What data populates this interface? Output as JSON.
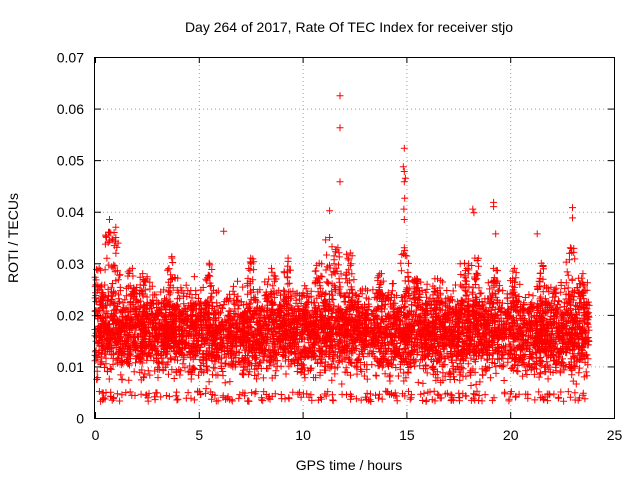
{
  "chart_data": {
    "type": "scatter",
    "title": "Day 264 of 2017, Rate Of TEC Index for receiver stjo",
    "xlabel": "GPS time / hours",
    "ylabel": "ROTI / TECUs",
    "xlim": [
      0,
      25
    ],
    "ylim": [
      0,
      0.07
    ],
    "x_ticks": [
      0,
      5,
      10,
      15,
      20,
      25
    ],
    "x_tick_labels": [
      "0",
      "5",
      "10",
      "15",
      "20",
      "25"
    ],
    "y_ticks": [
      0,
      0.01,
      0.02,
      0.03,
      0.04,
      0.05,
      0.06,
      0.07
    ],
    "y_tick_labels": [
      "0",
      "0.01",
      "0.02",
      "0.03",
      "0.04",
      "0.05",
      "0.06",
      "0.07"
    ],
    "grid": true,
    "marker": "+",
    "color": "#ff0000",
    "x_range_of_data": [
      0.0,
      23.8
    ],
    "bulk_band": [
      0.004,
      0.026
    ],
    "outliers": [
      {
        "x": 11.8,
        "y": 0.0625
      },
      {
        "x": 11.8,
        "y": 0.0563
      },
      {
        "x": 11.8,
        "y": 0.0458
      },
      {
        "x": 11.3,
        "y": 0.0402
      },
      {
        "x": 14.9,
        "y": 0.0523
      },
      {
        "x": 14.85,
        "y": 0.0487
      },
      {
        "x": 14.9,
        "y": 0.0478
      },
      {
        "x": 14.95,
        "y": 0.0465
      },
      {
        "x": 14.9,
        "y": 0.0458
      },
      {
        "x": 14.92,
        "y": 0.0426
      },
      {
        "x": 14.88,
        "y": 0.0405
      },
      {
        "x": 14.9,
        "y": 0.0385
      },
      {
        "x": 19.2,
        "y": 0.0418
      },
      {
        "x": 19.2,
        "y": 0.041
      },
      {
        "x": 18.2,
        "y": 0.0405
      },
      {
        "x": 18.25,
        "y": 0.0398
      },
      {
        "x": 23.0,
        "y": 0.0408
      },
      {
        "x": 23.0,
        "y": 0.0388
      },
      {
        "x": 0.7,
        "y": 0.0385
      },
      {
        "x": 1.0,
        "y": 0.037
      },
      {
        "x": 6.2,
        "y": 0.0362
      },
      {
        "x": 21.3,
        "y": 0.0357
      },
      {
        "x": 19.3,
        "y": 0.0357
      },
      {
        "x": 3.7,
        "y": 0.0313
      },
      {
        "x": 0.65,
        "y": 0.036
      }
    ],
    "peaks": [
      {
        "x": 0.2,
        "y": 0.029
      },
      {
        "x": 0.7,
        "y": 0.036
      },
      {
        "x": 1.0,
        "y": 0.035
      },
      {
        "x": 1.8,
        "y": 0.029
      },
      {
        "x": 2.3,
        "y": 0.028
      },
      {
        "x": 3.7,
        "y": 0.031
      },
      {
        "x": 5.5,
        "y": 0.03
      },
      {
        "x": 7.5,
        "y": 0.031
      },
      {
        "x": 8.5,
        "y": 0.029
      },
      {
        "x": 9.3,
        "y": 0.031
      },
      {
        "x": 10.8,
        "y": 0.03
      },
      {
        "x": 11.3,
        "y": 0.035
      },
      {
        "x": 11.7,
        "y": 0.033
      },
      {
        "x": 12.3,
        "y": 0.032
      },
      {
        "x": 13.8,
        "y": 0.028
      },
      {
        "x": 14.9,
        "y": 0.033
      },
      {
        "x": 15.5,
        "y": 0.027
      },
      {
        "x": 16.5,
        "y": 0.027
      },
      {
        "x": 17.8,
        "y": 0.03
      },
      {
        "x": 18.3,
        "y": 0.031
      },
      {
        "x": 19.2,
        "y": 0.029
      },
      {
        "x": 20.2,
        "y": 0.029
      },
      {
        "x": 21.5,
        "y": 0.03
      },
      {
        "x": 22.9,
        "y": 0.033
      },
      {
        "x": 23.5,
        "y": 0.028
      }
    ]
  }
}
